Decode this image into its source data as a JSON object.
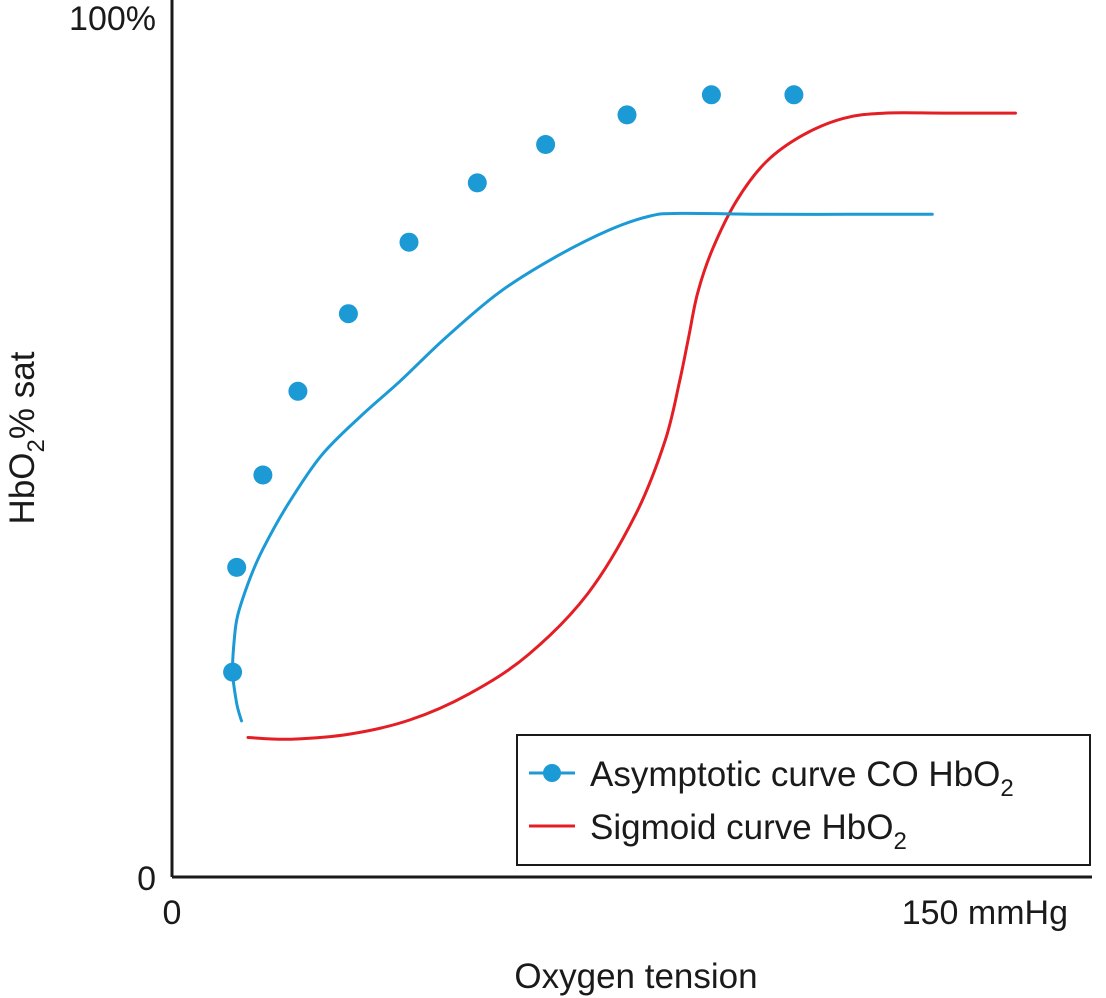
{
  "chart_data": {
    "type": "line",
    "xlabel": "Oxygen tension",
    "ylabel_main": "HbO",
    "ylabel_sub": "2",
    "ylabel_rest": "% sat",
    "x_ticks": [
      {
        "value": 0,
        "label": "0"
      },
      {
        "value": 150,
        "label": "150 mmHg"
      }
    ],
    "y_ticks": [
      {
        "value": 0,
        "label": "0"
      },
      {
        "value": 100,
        "label": "100%"
      }
    ],
    "xlim": [
      0,
      150
    ],
    "ylim": [
      0,
      100
    ],
    "grid": false,
    "legend_position": "bottom-right",
    "series": [
      {
        "name_main": "Asymptotic curve CO HbO",
        "name_sub": "2",
        "color": "#1b9ad6",
        "marker": "circle",
        "curve": [
          [
            11.7,
            17.9
          ],
          [
            10.9,
            19.9
          ],
          [
            10.2,
            23.5
          ],
          [
            10.5,
            27.4
          ],
          [
            11.1,
            30.1
          ],
          [
            13.1,
            34.2
          ],
          [
            15.3,
            37.6
          ],
          [
            19.4,
            42.6
          ],
          [
            25.1,
            48.3
          ],
          [
            31.7,
            52.8
          ],
          [
            38.3,
            56.8
          ],
          [
            46.0,
            61.8
          ],
          [
            55.0,
            67.0
          ],
          [
            64.3,
            71.0
          ],
          [
            73.6,
            74.2
          ],
          [
            80.5,
            75.8
          ],
          [
            85.6,
            76.1
          ],
          [
            100.0,
            76.0
          ],
          [
            114.0,
            76.0
          ],
          [
            128.0,
            76.0
          ]
        ],
        "points": [
          [
            10.2,
            23.5
          ],
          [
            10.9,
            35.5
          ],
          [
            15.3,
            46.1
          ],
          [
            21.2,
            55.7
          ],
          [
            29.7,
            64.6
          ],
          [
            39.9,
            72.8
          ],
          [
            51.4,
            79.6
          ],
          [
            62.9,
            84.0
          ],
          [
            76.6,
            87.4
          ],
          [
            90.8,
            89.7
          ],
          [
            104.7,
            89.7
          ]
        ]
      },
      {
        "name_main": "Sigmoid curve HbO",
        "name_sub": "2",
        "color": "#e31e24",
        "marker": "none",
        "curve": [
          [
            12.8,
            16.0
          ],
          [
            20.0,
            15.8
          ],
          [
            30.0,
            16.4
          ],
          [
            40.0,
            18.0
          ],
          [
            50.0,
            21.0
          ],
          [
            60.0,
            25.5
          ],
          [
            70.0,
            32.5
          ],
          [
            78.0,
            41.5
          ],
          [
            83.0,
            50.0
          ],
          [
            85.5,
            57.0
          ],
          [
            87.0,
            62.0
          ],
          [
            88.5,
            67.0
          ],
          [
            91.0,
            72.0
          ],
          [
            95.0,
            77.5
          ],
          [
            100.0,
            82.0
          ],
          [
            106.0,
            85.0
          ],
          [
            113.0,
            87.0
          ],
          [
            120.0,
            87.6
          ],
          [
            130.0,
            87.6
          ],
          [
            142.0,
            87.6
          ]
        ]
      }
    ]
  }
}
